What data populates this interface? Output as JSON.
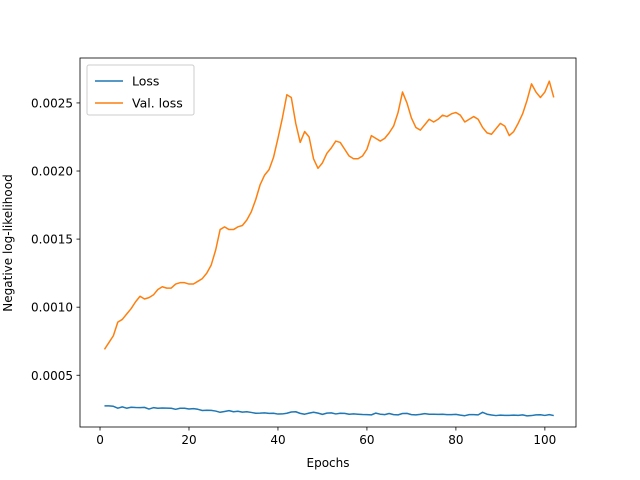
{
  "chart_data": {
    "type": "line",
    "title": "",
    "xlabel": "Epochs",
    "ylabel": "Negative log-likelihood",
    "xlim": [
      -4.5,
      107
    ],
    "ylim": [
      0.00012,
      0.00283
    ],
    "xticks": [
      0,
      20,
      40,
      60,
      80,
      100
    ],
    "yticks": [
      0.0005,
      0.001,
      0.0015,
      0.002,
      0.0025
    ],
    "ytick_labels": [
      "0.0005",
      "0.0010",
      "0.0015",
      "0.0020",
      "0.0025"
    ],
    "grid": false,
    "legend_position": "upper-left",
    "x": [
      1,
      2,
      3,
      4,
      5,
      6,
      7,
      8,
      9,
      10,
      11,
      12,
      13,
      14,
      15,
      16,
      17,
      18,
      19,
      20,
      21,
      22,
      23,
      24,
      25,
      26,
      27,
      28,
      29,
      30,
      31,
      32,
      33,
      34,
      35,
      36,
      37,
      38,
      39,
      40,
      41,
      42,
      43,
      44,
      45,
      46,
      47,
      48,
      49,
      50,
      51,
      52,
      53,
      54,
      55,
      56,
      57,
      58,
      59,
      60,
      61,
      62,
      63,
      64,
      65,
      66,
      67,
      68,
      69,
      70,
      71,
      72,
      73,
      74,
      75,
      76,
      77,
      78,
      79,
      80,
      81,
      82,
      83,
      84,
      85,
      86,
      87,
      88,
      89,
      90,
      91,
      92,
      93,
      94,
      95,
      96,
      97,
      98,
      99,
      100,
      101,
      102
    ],
    "series": [
      {
        "name": "Loss",
        "color": "#1f77b4",
        "values": [
          0.000275,
          0.000275,
          0.000272,
          0.000258,
          0.000268,
          0.000258,
          0.000265,
          0.000263,
          0.000262,
          0.000264,
          0.000252,
          0.000262,
          0.000258,
          0.00026,
          0.000259,
          0.000258,
          0.00025,
          0.000258,
          0.000258,
          0.000252,
          0.000255,
          0.00025,
          0.000241,
          0.000243,
          0.000242,
          0.000237,
          0.000228,
          0.000234,
          0.00024,
          0.000232,
          0.000236,
          0.000229,
          0.000232,
          0.000227,
          0.000221,
          0.000222,
          0.000224,
          0.00022,
          0.000221,
          0.000215,
          0.000216,
          0.000221,
          0.00023,
          0.000232,
          0.00022,
          0.000214,
          0.000222,
          0.000228,
          0.000222,
          0.000213,
          0.000222,
          0.000224,
          0.000216,
          0.000221,
          0.00022,
          0.000214,
          0.000216,
          0.000214,
          0.000212,
          0.000211,
          0.000209,
          0.000222,
          0.000214,
          0.000211,
          0.000219,
          0.000211,
          0.000209,
          0.000219,
          0.00022,
          0.000211,
          0.000209,
          0.000213,
          0.000218,
          0.000214,
          0.000214,
          0.000213,
          0.000214,
          0.000211,
          0.000211,
          0.000213,
          0.000207,
          0.000203,
          0.000211,
          0.000211,
          0.000209,
          0.000228,
          0.000214,
          0.000208,
          0.000204,
          0.000207,
          0.000205,
          0.000205,
          0.000207,
          0.000205,
          0.000209,
          0.000202,
          0.000204,
          0.000209,
          0.00021,
          0.000205,
          0.000211,
          0.000204
        ]
      },
      {
        "name": "Val. loss",
        "color": "#ff7f0e",
        "values": [
          0.00069,
          0.00074,
          0.00079,
          0.00089,
          0.00091,
          0.00095,
          0.00099,
          0.00104,
          0.00108,
          0.00106,
          0.00107,
          0.00109,
          0.00113,
          0.00115,
          0.00114,
          0.00114,
          0.00117,
          0.00118,
          0.00118,
          0.00117,
          0.00117,
          0.00119,
          0.00121,
          0.00125,
          0.00131,
          0.00142,
          0.00157,
          0.00159,
          0.00157,
          0.00157,
          0.00159,
          0.0016,
          0.00164,
          0.0017,
          0.00179,
          0.0019,
          0.00197,
          0.00201,
          0.0021,
          0.00224,
          0.00239,
          0.00256,
          0.00254,
          0.00235,
          0.00221,
          0.00229,
          0.00225,
          0.00209,
          0.00202,
          0.00206,
          0.00213,
          0.00217,
          0.00222,
          0.00221,
          0.00216,
          0.00211,
          0.00209,
          0.00209,
          0.00211,
          0.00216,
          0.00226,
          0.00224,
          0.00222,
          0.00224,
          0.00228,
          0.00233,
          0.00243,
          0.00258,
          0.0025,
          0.00239,
          0.00232,
          0.0023,
          0.00234,
          0.00238,
          0.00236,
          0.00238,
          0.00241,
          0.0024,
          0.00242,
          0.00243,
          0.00241,
          0.00236,
          0.00238,
          0.0024,
          0.00238,
          0.00232,
          0.00228,
          0.00227,
          0.00231,
          0.00235,
          0.00233,
          0.00226,
          0.00229,
          0.00235,
          0.00242,
          0.00252,
          0.00264,
          0.00258,
          0.00254,
          0.00258,
          0.00266,
          0.00254
        ]
      }
    ]
  }
}
